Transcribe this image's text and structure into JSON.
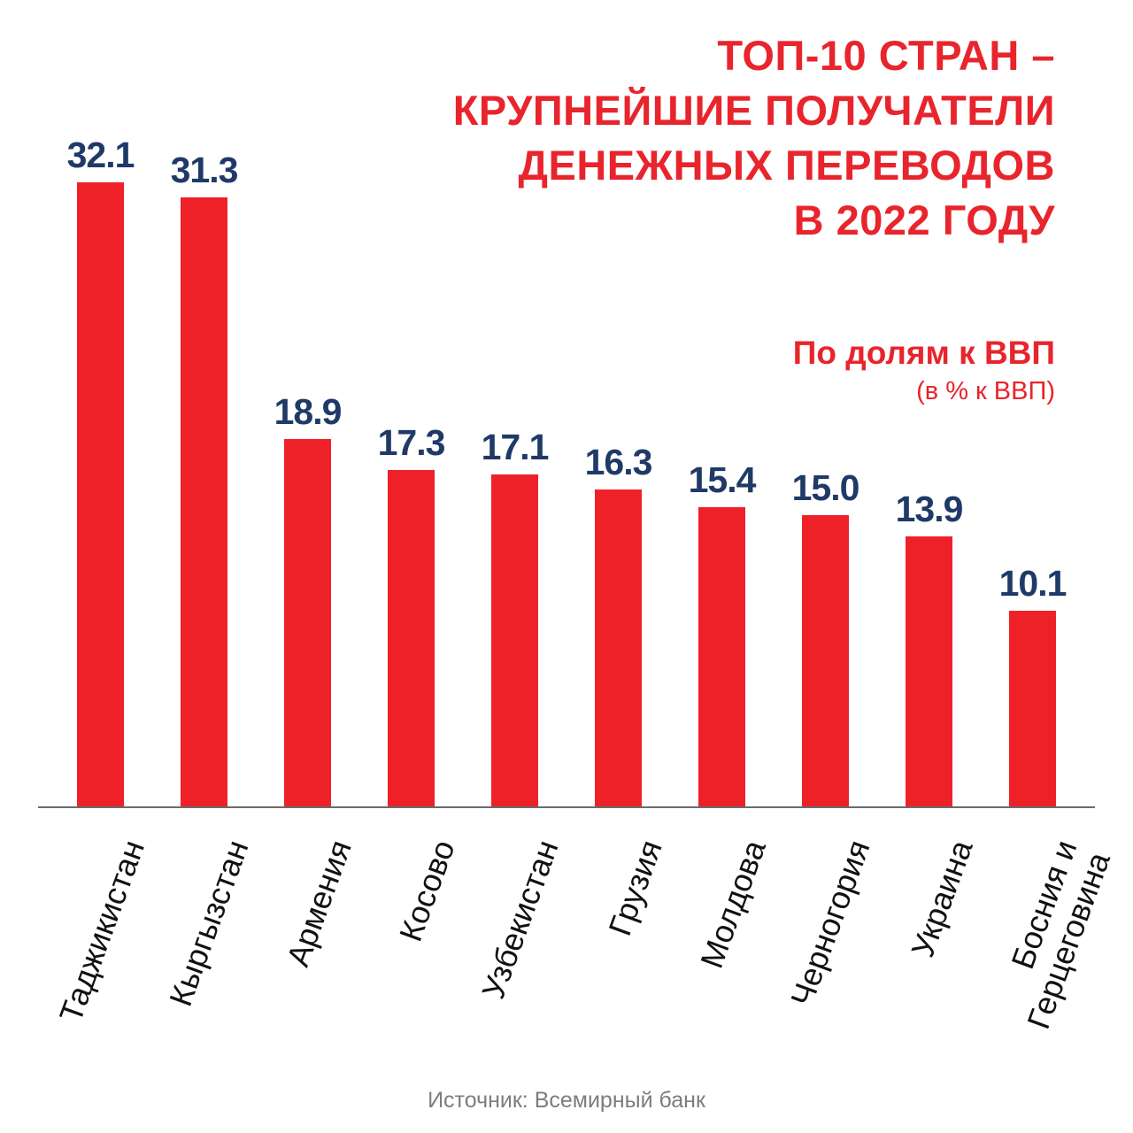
{
  "title": {
    "lines": [
      "ТОП-10 СТРАН –",
      "КРУПНЕЙШИЕ ПОЛУЧАТЕЛИ",
      "ДЕНЕЖНЫХ ПЕРЕВОДОВ",
      "В 2022 ГОДУ"
    ]
  },
  "subtitle": {
    "main": "По долям к ВВП",
    "note": "(в % к ВВП)"
  },
  "source": "Источник: Всемирный банк",
  "colors": {
    "bar": "#ee2129",
    "value_label": "#1f3a67",
    "title": "#e8242c",
    "subtitle": "#e8242c",
    "axis": "#6b6b6b",
    "country_label": "#111111",
    "source": "#7d7d7d"
  },
  "chart_data": {
    "type": "bar",
    "orientation": "vertical",
    "title": "ТОП-10 СТРАН – КРУПНЕЙШИЕ ПОЛУЧАТЕЛИ ДЕНЕЖНЫХ ПЕРЕВОДОВ В 2022 ГОДУ",
    "subtitle": "По долям к ВВП (в % к ВВП)",
    "categories": [
      "Таджикистан",
      "Кыргызстан",
      "Армения",
      "Косово",
      "Узбекистан",
      "Грузия",
      "Молдова",
      "Черногория",
      "Украина",
      "Босния и\nГерцеговина"
    ],
    "values": [
      32.1,
      31.3,
      18.9,
      17.3,
      17.1,
      16.3,
      15.4,
      15.0,
      13.9,
      10.1
    ],
    "value_labels": [
      "32.1",
      "31.3",
      "18.9",
      "17.3",
      "17.1",
      "16.3",
      "15.4",
      "15.0",
      "13.9",
      "10.1"
    ],
    "ylabel": "% к ВВП",
    "xlabel": "",
    "ylim": [
      0,
      32.1
    ],
    "grid": false,
    "legend": false,
    "data_labels": true
  }
}
